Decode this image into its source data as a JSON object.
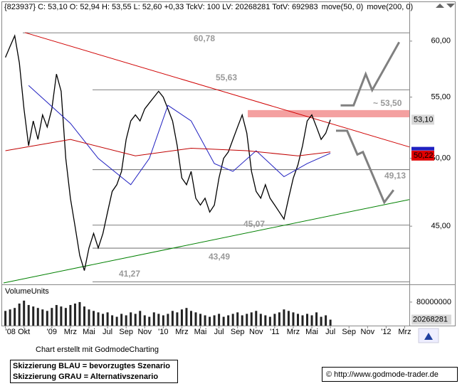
{
  "chart_data": [
    {
      "type": "line",
      "header": "{823937} C: 53,10 O: 52,94 H: 53,55 L: 52,60 +0,33 TckV: 100 LV: 20268281 TotV: 692983",
      "xlim": [
        -0.2,
        43.5
      ],
      "ylim": [
        41.2,
        62.7
      ],
      "log_scale": true,
      "yticks": [
        {
          "value": 60,
          "label": "60,00"
        },
        {
          "value": 55,
          "label": "55,00"
        },
        {
          "value": 50,
          "label": "50,00"
        },
        {
          "value": 45,
          "label": "45,00"
        }
      ],
      "series": [
        {
          "color": "#000000",
          "x": [
            0,
            0.5,
            1,
            1.5,
            2,
            2.5,
            3,
            3.5,
            4,
            4.5,
            5,
            5.5,
            6,
            6.5,
            7,
            7.5,
            8,
            8.5,
            9,
            9.5,
            10,
            10.5,
            11,
            11.5,
            12,
            12.5,
            13,
            13.5,
            14,
            14.5,
            15,
            15.5,
            16,
            16.5,
            17,
            17.5,
            18,
            18.5,
            19,
            19.5,
            20,
            20.5,
            21,
            21.5,
            22,
            22.5,
            23,
            23.5,
            24,
            24.5,
            25,
            25.5,
            26,
            26.5,
            27,
            27.5,
            28,
            28.5,
            29,
            29.5,
            30,
            30.5,
            31,
            31.5,
            32,
            32.5,
            33,
            33.5,
            34,
            34.5,
            35
          ],
          "values": [
            58.5,
            59.5,
            60.5,
            58,
            54,
            51,
            53,
            51.5,
            53.5,
            52.5,
            54,
            57,
            55.5,
            50,
            47,
            45,
            43,
            42,
            43.5,
            44.5,
            43.5,
            44.5,
            46,
            47.5,
            48,
            49,
            51.5,
            53,
            53.5,
            53,
            54,
            54.5,
            55,
            55.5,
            55,
            54,
            53,
            51,
            48.5,
            48,
            49,
            47,
            46.5,
            47,
            46,
            46.5,
            48.5,
            50,
            50.5,
            51.5,
            52.5,
            53.5,
            52,
            49,
            47.5,
            47,
            48,
            47,
            46.5,
            46,
            45.5,
            47,
            48.5,
            49.5,
            51,
            53,
            53.5,
            52.5,
            51.5,
            52,
            53.1
          ]
        },
        {
          "name": "move(50, 0)",
          "color": "#2020c0",
          "x": [
            2.5,
            7,
            10,
            13.5,
            15.5,
            17.5,
            20,
            22.5,
            24.5,
            27,
            30,
            32.5,
            35
          ],
          "values": [
            56,
            52.8,
            50,
            48,
            50,
            54.3,
            53,
            49.6,
            49,
            50.6,
            48.6,
            49.6,
            50.4
          ]
        },
        {
          "name": "move(200, 0)",
          "color": "#c00000",
          "x": [
            0,
            7,
            14,
            20,
            26,
            31.5,
            35
          ],
          "values": [
            50.6,
            51.5,
            50.2,
            50.8,
            50.6,
            50.2,
            50.5
          ]
        }
      ],
      "levels": [
        {
          "value": 60.78,
          "label": "60,78"
        },
        {
          "value": 55.63,
          "label": "55,63"
        },
        {
          "value": 49.13,
          "label": "49,13"
        },
        {
          "value": 45.07,
          "label": "45,07"
        },
        {
          "value": 43.49,
          "label": "43,49"
        },
        {
          "value": 41.27,
          "label": "41,27"
        }
      ],
      "zone": {
        "x": [
          26.1,
          43.5
        ],
        "lo": 53.3,
        "hi": 53.9,
        "label": "~ 53,50",
        "color": "#f4a0a0"
      },
      "trendlines": [
        {
          "color": "#d00000",
          "x": [
            2.1,
            43.5
          ],
          "values": [
            60.8,
            50.9
          ]
        },
        {
          "color": "#008000",
          "x": [
            -0.2,
            43.5
          ],
          "values": [
            41.2,
            46.9
          ]
        }
      ],
      "scenarios": [
        {
          "color": "#808080",
          "x": [
            36.1,
            37.5,
            38.8,
            39.5,
            42.4
          ],
          "values": [
            54.3,
            54.3,
            57.0,
            55.6,
            59.9
          ]
        },
        {
          "color": "#808080",
          "x": [
            35.6,
            36.8,
            37.9,
            38.5,
            40.8,
            41.8
          ],
          "values": [
            52.2,
            52.2,
            50.3,
            50.5,
            46.7,
            47.6
          ]
        }
      ],
      "price_tags": [
        {
          "value": 53.1,
          "label": "53,10",
          "color": "#d8d8d8"
        },
        {
          "value": 50.22,
          "label": "50,22",
          "color": "#e00000"
        }
      ]
    },
    {
      "type": "bar",
      "title": "VolumeUnits",
      "xlim": [
        -0.2,
        43.5
      ],
      "ylim": [
        0,
        133000000
      ],
      "yticks": [
        80000000
      ],
      "color": "#222222",
      "xticks": [
        {
          "value": 0,
          "label": "'08"
        },
        {
          "value": 2,
          "label": "Okt"
        },
        {
          "value": 5,
          "label": "'09"
        },
        {
          "value": 7,
          "label": "Mrz"
        },
        {
          "value": 9,
          "label": "Mai"
        },
        {
          "value": 11,
          "label": "Jul"
        },
        {
          "value": 13,
          "label": "Sep"
        },
        {
          "value": 15,
          "label": "Nov"
        },
        {
          "value": 17,
          "label": "'10"
        },
        {
          "value": 19,
          "label": "Mrz"
        },
        {
          "value": 21,
          "label": "Mai"
        },
        {
          "value": 23,
          "label": "Jul"
        },
        {
          "value": 25,
          "label": "Sep"
        },
        {
          "value": 27,
          "label": "Nov"
        },
        {
          "value": 29,
          "label": "'11"
        },
        {
          "value": 31,
          "label": "Mrz"
        },
        {
          "value": 33,
          "label": "Mai"
        },
        {
          "value": 35,
          "label": "Jul"
        },
        {
          "value": 37,
          "label": "Sep"
        },
        {
          "value": 39,
          "label": "Nov"
        },
        {
          "value": 41,
          "label": "'12"
        },
        {
          "value": 43,
          "label": "Mrz"
        }
      ],
      "x": [
        0,
        0.5,
        1,
        1.5,
        2,
        2.5,
        3,
        3.5,
        4,
        4.5,
        5,
        5.5,
        6,
        6.5,
        7,
        7.5,
        8,
        8.5,
        9,
        9.5,
        10,
        10.5,
        11,
        11.5,
        12,
        12.5,
        13,
        13.5,
        14,
        14.5,
        15,
        15.5,
        16,
        16.5,
        17,
        17.5,
        18,
        18.5,
        19,
        19.5,
        20,
        20.5,
        21,
        21.5,
        22,
        22.5,
        23,
        23.5,
        24,
        24.5,
        25,
        25.5,
        26,
        26.5,
        27,
        27.5,
        28,
        28.5,
        29,
        29.5,
        30,
        30.5,
        31,
        31.5,
        32,
        32.5,
        33,
        33.5,
        34,
        34.5,
        35
      ],
      "values": [
        50000000,
        55000000,
        60000000,
        75000000,
        85000000,
        70000000,
        65000000,
        60000000,
        55000000,
        50000000,
        60000000,
        70000000,
        65000000,
        60000000,
        70000000,
        75000000,
        80000000,
        65000000,
        55000000,
        50000000,
        45000000,
        40000000,
        45000000,
        35000000,
        30000000,
        40000000,
        35000000,
        45000000,
        40000000,
        50000000,
        35000000,
        30000000,
        45000000,
        40000000,
        35000000,
        40000000,
        50000000,
        45000000,
        55000000,
        60000000,
        50000000,
        45000000,
        40000000,
        35000000,
        30000000,
        35000000,
        40000000,
        30000000,
        35000000,
        40000000,
        45000000,
        35000000,
        40000000,
        45000000,
        50000000,
        40000000,
        35000000,
        30000000,
        40000000,
        45000000,
        55000000,
        50000000,
        45000000,
        40000000,
        35000000,
        40000000,
        35000000,
        45000000,
        30000000,
        35000000,
        20268281
      ],
      "last_tag": {
        "value": 20268281,
        "label": "20268281"
      }
    }
  ],
  "footer": {
    "credit": "Chart erstellt mit GodmodeCharting",
    "legend": [
      "Skizzierung BLAU = bevorzugtes Szenario",
      "Skizzierung GRAU = Alternativszenario"
    ],
    "copyright": "© http://www.godmode-trader.de"
  }
}
